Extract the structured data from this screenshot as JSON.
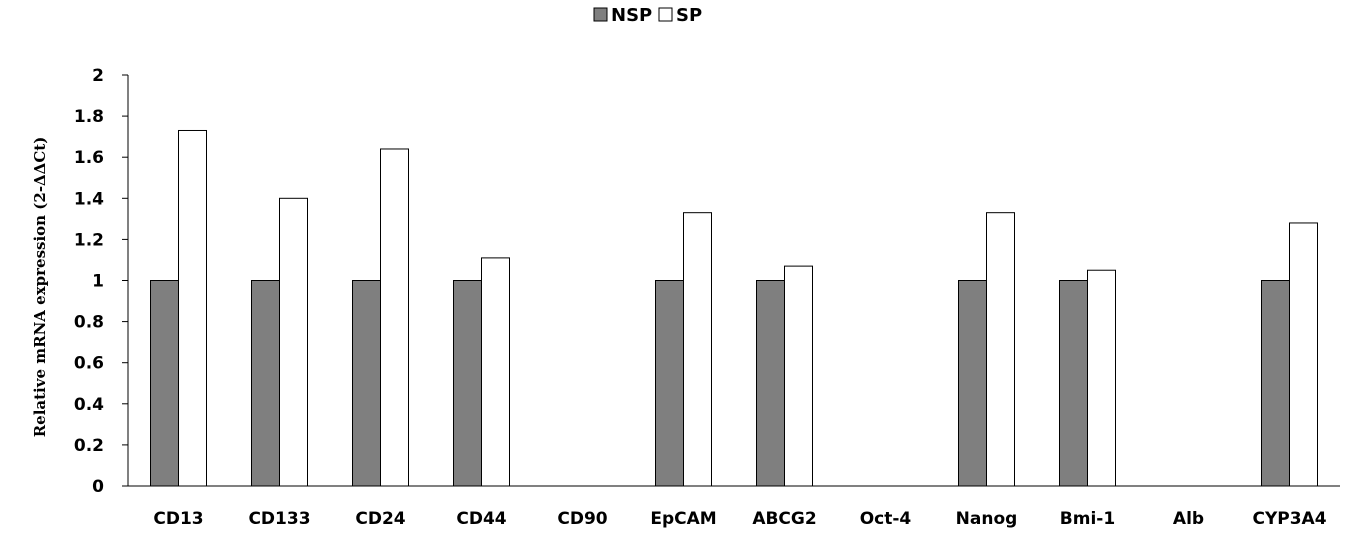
{
  "chart_data": {
    "type": "bar",
    "categories": [
      "CD13",
      "CD133",
      "CD24",
      "CD44",
      "CD90",
      "EpCAM",
      "ABCG2",
      "Oct-4",
      "Nanog",
      "Bmi-1",
      "Alb",
      "CYP3A4"
    ],
    "series": [
      {
        "name": "NSP",
        "color": "#7f7f7f",
        "values": [
          1,
          1,
          1,
          1,
          null,
          1,
          1,
          null,
          1,
          1,
          null,
          1
        ]
      },
      {
        "name": "SP",
        "color": "#ffffff",
        "values": [
          1.73,
          1.4,
          1.64,
          1.11,
          null,
          1.33,
          1.07,
          null,
          1.33,
          1.05,
          null,
          1.28
        ]
      }
    ],
    "ylabel": "Relative mRNA expression (2-ΔΔCt)",
    "ylim": [
      0,
      2
    ],
    "yticks": [
      "0",
      "0.2",
      "0.4",
      "0.6",
      "0.8",
      "1",
      "1.2",
      "1.4",
      "1.6",
      "1.8",
      "2"
    ],
    "grid": false,
    "legend_position": "top-center"
  }
}
